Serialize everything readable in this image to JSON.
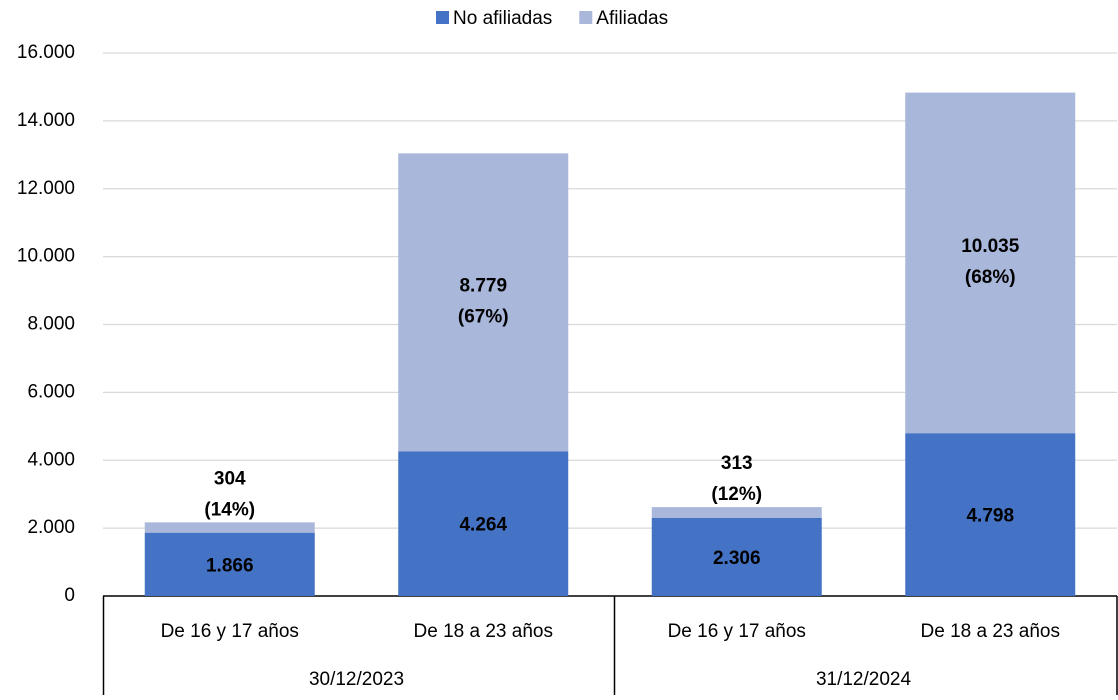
{
  "chart_data": {
    "type": "stacked-bar",
    "categories": [
      "De 16 y 17 años",
      "De 18 a 23 años",
      "De 16 y 17 años",
      "De 18 a 23 años"
    ],
    "group_labels": [
      "30/12/2023",
      "31/12/2024"
    ],
    "series": [
      {
        "name": "No afiliadas",
        "color": "#4472c4",
        "values": [
          1866,
          4264,
          2306,
          4798
        ],
        "value_labels": [
          "1.866",
          "4.264",
          "2.306",
          "4.798"
        ]
      },
      {
        "name": "Afiliadas",
        "color": "#a9b7db",
        "values": [
          304,
          8779,
          313,
          10035
        ],
        "value_labels": [
          "304",
          "8.779",
          "313",
          "10.035"
        ],
        "shares": [
          14,
          67,
          12,
          68
        ],
        "share_labels": [
          "(14%)",
          "(67%)",
          "(12%)",
          "(68%)"
        ]
      }
    ],
    "ylim": [
      0,
      16000
    ],
    "yticks": [
      0,
      {
        "value": 2000,
        "label": "2.000"
      },
      {
        "value": 4000,
        "label": "4.000"
      },
      {
        "value": 6000,
        "label": "6.000"
      },
      {
        "value": 8000,
        "label": "8.000"
      },
      {
        "value": 10000,
        "label": "10.000"
      },
      {
        "value": 12000,
        "label": "12.000"
      },
      {
        "value": 14000,
        "label": "14.000"
      },
      {
        "value": 16000,
        "label": "16.000"
      }
    ],
    "grid": true
  }
}
